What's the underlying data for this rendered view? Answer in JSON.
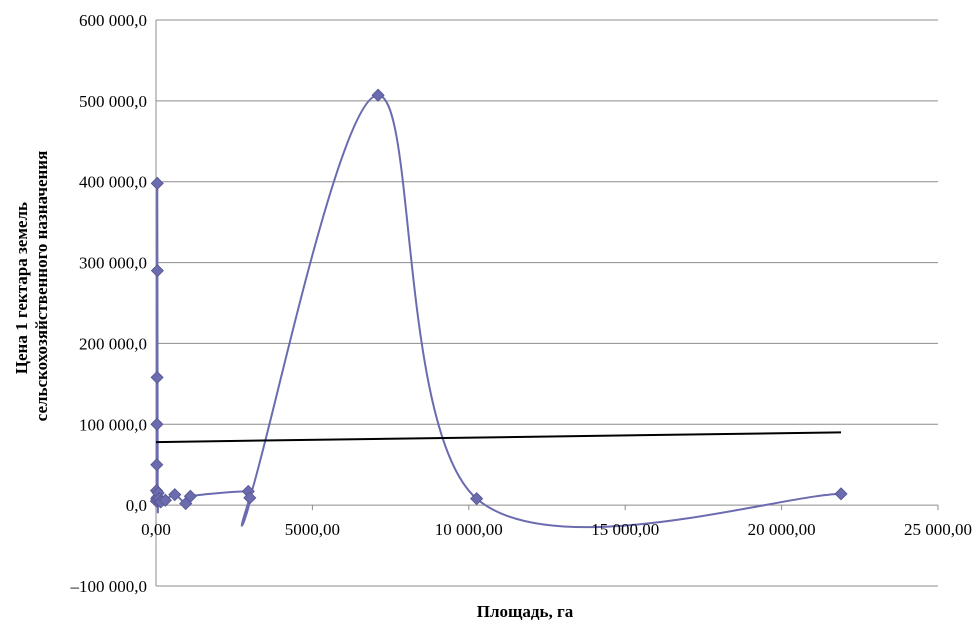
{
  "chart_data": {
    "type": "scatter",
    "title": "",
    "xlabel": "Площадь, га",
    "ylabel_lines": [
      "Цена 1 гектара земель",
      "сельскохозяйственного назначения"
    ],
    "xlim": [
      0,
      25000
    ],
    "ylim": [
      -100000,
      600000
    ],
    "x_ticks": [
      {
        "value": 0,
        "label": "0,00"
      },
      {
        "value": 5000,
        "label": "5000,00"
      },
      {
        "value": 10000,
        "label": "10 000,00"
      },
      {
        "value": 15000,
        "label": "15 000,00"
      },
      {
        "value": 20000,
        "label": "20 000,00"
      },
      {
        "value": 25000,
        "label": "25 000,00"
      }
    ],
    "y_ticks": [
      {
        "value": -100000,
        "label": "–100 000,0"
      },
      {
        "value": 0,
        "label": "0,0"
      },
      {
        "value": 100000,
        "label": "100 000,0"
      },
      {
        "value": 200000,
        "label": "200 000,0"
      },
      {
        "value": 300000,
        "label": "300 000,0"
      },
      {
        "value": 400000,
        "label": "400 000,0"
      },
      {
        "value": 500000,
        "label": "500 000,0"
      },
      {
        "value": 600000,
        "label": "600 000,0"
      }
    ],
    "grid": {
      "horizontal": true,
      "vertical": false
    },
    "series": [
      {
        "kind": "smoothed-line-with-markers",
        "color": "#6b6baf",
        "marker": "diamond",
        "points": [
          {
            "x": 10,
            "y": 5000
          },
          {
            "x": 15,
            "y": 18000
          },
          {
            "x": 20,
            "y": 8000
          },
          {
            "x": 25,
            "y": 50000
          },
          {
            "x": 30,
            "y": 100000
          },
          {
            "x": 35,
            "y": 158000
          },
          {
            "x": 40,
            "y": 398000
          },
          {
            "x": 45,
            "y": 290000
          },
          {
            "x": 55,
            "y": 10000
          },
          {
            "x": 70,
            "y": 15000
          },
          {
            "x": 100,
            "y": 8000
          },
          {
            "x": 150,
            "y": 4000
          },
          {
            "x": 300,
            "y": 6000
          },
          {
            "x": 600,
            "y": 13000
          },
          {
            "x": 950,
            "y": 2000
          },
          {
            "x": 1100,
            "y": 11000
          },
          {
            "x": 2950,
            "y": 17000
          },
          {
            "x": 3000,
            "y": 9000
          },
          {
            "x": 7100,
            "y": 507000
          },
          {
            "x": 10250,
            "y": 8000
          },
          {
            "x": 21900,
            "y": 14000
          }
        ]
      },
      {
        "kind": "trend-line",
        "color": "#000000",
        "points": [
          {
            "x": 0,
            "y": 78000
          },
          {
            "x": 21900,
            "y": 90000
          }
        ]
      }
    ]
  }
}
